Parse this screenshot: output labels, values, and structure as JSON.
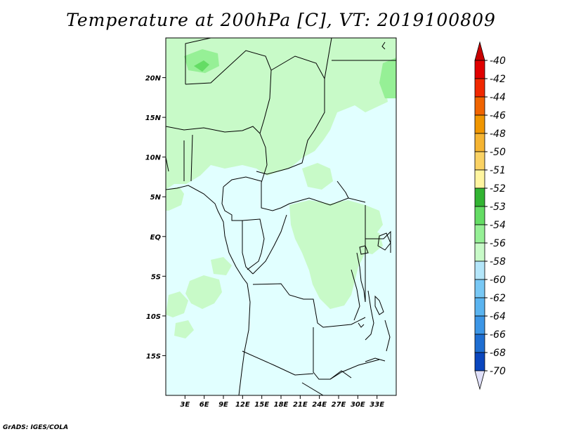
{
  "title": "Temperature at 200hPa [C], VT: 2019100809",
  "credit": "GrADS: IGES/COLA",
  "map": {
    "lon_range": [
      0,
      36
    ],
    "lat_range": [
      -20,
      25
    ],
    "lat_ticks": [
      {
        "label": "20N",
        "value": 20
      },
      {
        "label": "15N",
        "value": 15
      },
      {
        "label": "10N",
        "value": 10
      },
      {
        "label": "5N",
        "value": 5
      },
      {
        "label": "EQ",
        "value": 0
      },
      {
        "label": "5S",
        "value": -5
      },
      {
        "label": "10S",
        "value": -10
      },
      {
        "label": "15S",
        "value": -15
      }
    ],
    "lon_ticks": [
      {
        "label": "3E",
        "value": 3
      },
      {
        "label": "6E",
        "value": 6
      },
      {
        "label": "9E",
        "value": 9
      },
      {
        "label": "12E",
        "value": 12
      },
      {
        "label": "15E",
        "value": 15
      },
      {
        "label": "18E",
        "value": 18
      },
      {
        "label": "21E",
        "value": 21
      },
      {
        "label": "24E",
        "value": 24
      },
      {
        "label": "27E",
        "value": 27
      },
      {
        "label": "30E",
        "value": 30
      },
      {
        "label": "33E",
        "value": 33
      }
    ]
  },
  "legend": {
    "levels": [
      {
        "label": "-40",
        "color": "#e00000"
      },
      {
        "label": "-42",
        "color": "#f02800"
      },
      {
        "label": "-44",
        "color": "#f06400"
      },
      {
        "label": "-46",
        "color": "#f09600"
      },
      {
        "label": "-48",
        "color": "#f5b432"
      },
      {
        "label": "-50",
        "color": "#fad264"
      },
      {
        "label": "-51",
        "color": "#fff5a0"
      },
      {
        "label": "-52",
        "color": "#32b432"
      },
      {
        "label": "-53",
        "color": "#64dc64"
      },
      {
        "label": "-54",
        "color": "#96f096"
      },
      {
        "label": "-56",
        "color": "#c8fac8"
      },
      {
        "label": "-58",
        "color": "#b4e6fa"
      },
      {
        "label": "-60",
        "color": "#78c8f5"
      },
      {
        "label": "-62",
        "color": "#5ab4f0"
      },
      {
        "label": "-64",
        "color": "#3c96e6"
      },
      {
        "label": "-66",
        "color": "#1e6ed2"
      },
      {
        "label": "-68",
        "color": "#0a46be"
      },
      {
        "label": "-70",
        "color": "#002896"
      }
    ],
    "top_color": "#c80000",
    "bottom_color": "#e1e1fa",
    "background_field_color": "#e1ffff",
    "warm_field_color": "#c8fac8",
    "warmer_field_color": "#96f096",
    "warmest_field_color": "#64dc64"
  }
}
